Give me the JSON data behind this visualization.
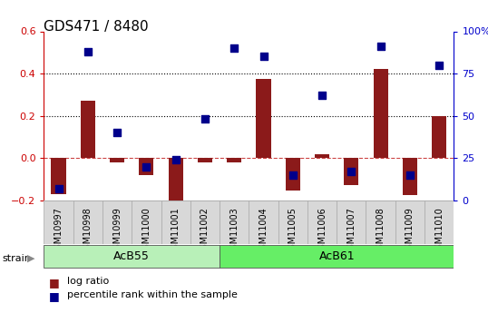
{
  "title": "GDS471 / 8480",
  "samples": [
    "GSM10997",
    "GSM10998",
    "GSM10999",
    "GSM11000",
    "GSM11001",
    "GSM11002",
    "GSM11003",
    "GSM11004",
    "GSM11005",
    "GSM11006",
    "GSM11007",
    "GSM11008",
    "GSM11009",
    "GSM11010"
  ],
  "log_ratio": [
    -0.17,
    0.27,
    -0.02,
    -0.08,
    -0.22,
    -0.02,
    -0.02,
    0.375,
    -0.155,
    0.02,
    -0.13,
    0.42,
    -0.175,
    0.2
  ],
  "percentile_rank": [
    7,
    88,
    40,
    20,
    24,
    48,
    90,
    85,
    15,
    62,
    17,
    91,
    15,
    80
  ],
  "groups": [
    {
      "label": "AcB55",
      "start": 0,
      "end": 5
    },
    {
      "label": "AcB61",
      "start": 6,
      "end": 13
    }
  ],
  "group_colors": [
    "#b8f0b8",
    "#66ee66"
  ],
  "bar_color": "#8b1a1a",
  "dot_color": "#00008b",
  "ylim_left": [
    -0.2,
    0.6
  ],
  "ylim_right": [
    0,
    100
  ],
  "yticks_left": [
    -0.2,
    0.0,
    0.2,
    0.4,
    0.6
  ],
  "yticks_right": [
    0,
    25,
    50,
    75,
    100
  ],
  "hlines": [
    0.2,
    0.4
  ],
  "left_axis_color": "#cc0000",
  "right_axis_color": "#0000cc",
  "plot_bg_color": "#ffffff",
  "bar_width": 0.5,
  "dot_size": 28,
  "tick_label_fontsize": 7,
  "group_label_fontsize": 9,
  "title_fontsize": 11,
  "legend_fontsize": 8
}
